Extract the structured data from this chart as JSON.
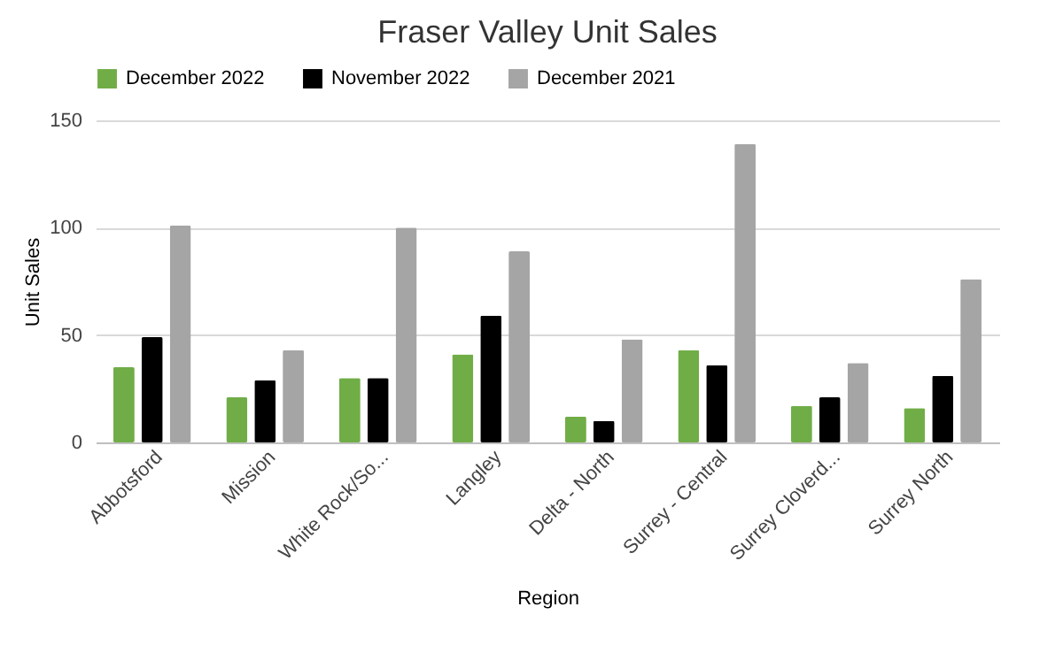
{
  "chart_data": {
    "type": "bar",
    "title": "Fraser Valley Unit Sales",
    "xlabel": "Region",
    "ylabel": "Unit Sales",
    "categories": [
      "Abbotsford",
      "Mission",
      "White Rock/So...",
      "Langley",
      "Delta - North",
      "Surrey - Central",
      "Surrey Cloverd...",
      "Surrey North"
    ],
    "series": [
      {
        "name": "December 2022",
        "color": "#70ad47",
        "values": [
          35,
          21,
          30,
          41,
          12,
          43,
          17,
          16
        ]
      },
      {
        "name": "November 2022",
        "color": "#000000",
        "values": [
          49,
          29,
          30,
          59,
          10,
          36,
          21,
          31
        ]
      },
      {
        "name": "December 2021",
        "color": "#a5a5a5",
        "values": [
          101,
          43,
          100,
          89,
          48,
          139,
          37,
          76
        ]
      }
    ],
    "ylim": [
      0,
      150
    ],
    "yticks": [
      0,
      50,
      100,
      150
    ],
    "grid": "y",
    "legend": "top"
  }
}
